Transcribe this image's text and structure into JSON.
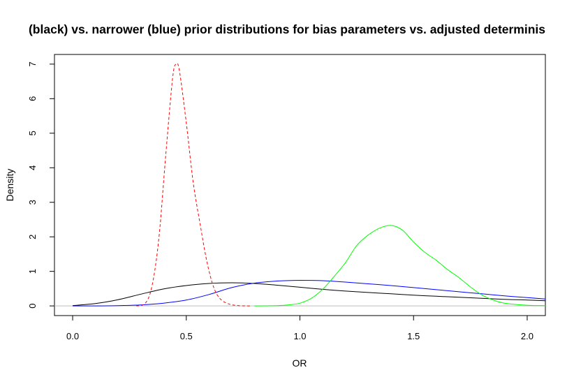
{
  "chart_data": {
    "type": "line",
    "title": "(black) vs. narrower (blue) prior distributions for bias parameters vs. adjusted determinis",
    "xlabel": "OR",
    "ylabel": "Density",
    "xlim": [
      -0.08,
      2.08
    ],
    "ylim": [
      -0.28,
      7.28
    ],
    "x_ticks": [
      "0.0",
      "0.5",
      "1.0",
      "1.5",
      "2.0"
    ],
    "y_ticks": [
      "0",
      "1",
      "2",
      "3",
      "4",
      "5",
      "6",
      "7"
    ],
    "reference_line": {
      "y": 0,
      "color": "#bebebe"
    },
    "grid": false,
    "legend": "none",
    "series": [
      {
        "color": "#000000",
        "linestyle": "solid",
        "x": [
          0.0,
          0.1,
          0.2,
          0.3,
          0.4,
          0.5,
          0.6,
          0.7,
          0.8,
          0.9,
          1.0,
          1.1,
          1.2,
          1.3,
          1.4,
          1.5,
          1.6,
          1.7,
          1.8,
          1.9,
          2.0,
          2.08
        ],
        "y": [
          0.01,
          0.07,
          0.18,
          0.34,
          0.49,
          0.59,
          0.65,
          0.67,
          0.65,
          0.6,
          0.54,
          0.48,
          0.43,
          0.39,
          0.35,
          0.31,
          0.28,
          0.25,
          0.22,
          0.19,
          0.17,
          0.15
        ]
      },
      {
        "color": "#0000ff",
        "linestyle": "solid",
        "x": [
          0.0,
          0.1,
          0.2,
          0.3,
          0.4,
          0.5,
          0.6,
          0.7,
          0.8,
          0.9,
          1.0,
          1.1,
          1.2,
          1.3,
          1.4,
          1.5,
          1.6,
          1.7,
          1.8,
          1.9,
          2.0,
          2.08
        ],
        "y": [
          0.0,
          0.0,
          0.01,
          0.03,
          0.08,
          0.17,
          0.33,
          0.53,
          0.66,
          0.72,
          0.74,
          0.73,
          0.69,
          0.64,
          0.59,
          0.53,
          0.47,
          0.41,
          0.35,
          0.29,
          0.24,
          0.2
        ]
      },
      {
        "color": "#ff0000",
        "linestyle": "dashed",
        "x": [
          0.28,
          0.32,
          0.35,
          0.38,
          0.41,
          0.44,
          0.455,
          0.47,
          0.5,
          0.53,
          0.56,
          0.59,
          0.62,
          0.65,
          0.69,
          0.73,
          0.78
        ],
        "y": [
          0.0,
          0.08,
          0.6,
          2.0,
          4.4,
          6.6,
          7.0,
          6.8,
          5.3,
          3.6,
          2.4,
          1.3,
          0.55,
          0.2,
          0.05,
          0.01,
          0.0
        ]
      },
      {
        "color": "#00ff00",
        "linestyle": "solid",
        "x": [
          0.8,
          0.9,
          0.95,
          1.0,
          1.05,
          1.1,
          1.15,
          1.2,
          1.25,
          1.3,
          1.35,
          1.4,
          1.45,
          1.5,
          1.55,
          1.6,
          1.65,
          1.7,
          1.75,
          1.8,
          1.85,
          1.9,
          2.0,
          2.08
        ],
        "y": [
          0.0,
          0.01,
          0.03,
          0.08,
          0.22,
          0.48,
          0.85,
          1.25,
          1.75,
          2.05,
          2.25,
          2.33,
          2.2,
          1.85,
          1.55,
          1.32,
          1.05,
          0.82,
          0.55,
          0.32,
          0.17,
          0.08,
          0.02,
          0.01
        ]
      }
    ]
  }
}
